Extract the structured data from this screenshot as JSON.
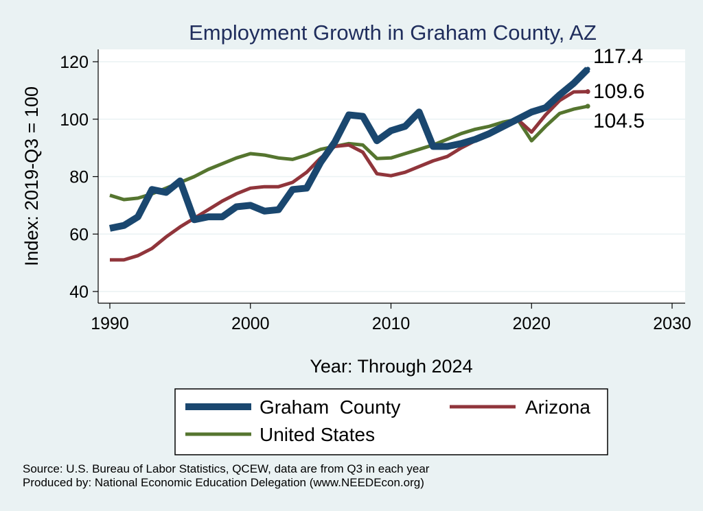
{
  "chart_data": {
    "type": "line",
    "title": "Employment Growth in Graham County, AZ",
    "xlabel": "Year: Through 2024",
    "ylabel": "Index: 2019-Q3 = 100",
    "xlim": [
      1990,
      2030
    ],
    "ylim": [
      40,
      120
    ],
    "x_ticks": [
      1990,
      2000,
      2010,
      2020,
      2030
    ],
    "y_ticks": [
      40,
      60,
      80,
      100,
      120
    ],
    "x_tick_labels": [
      "1990",
      "2000",
      "2010",
      "2020",
      "2030"
    ],
    "y_tick_labels": [
      "40",
      "60",
      "80",
      "100",
      "120"
    ],
    "grid": true,
    "legend_position": "bottom",
    "x": [
      1990,
      1991,
      1992,
      1993,
      1994,
      1995,
      1996,
      1997,
      1998,
      1999,
      2000,
      2001,
      2002,
      2003,
      2004,
      2005,
      2006,
      2007,
      2008,
      2009,
      2010,
      2011,
      2012,
      2013,
      2014,
      2015,
      2016,
      2017,
      2018,
      2019,
      2020,
      2021,
      2022,
      2023,
      2024
    ],
    "series": [
      {
        "name": "Graham  County",
        "color": "#1a476f",
        "values": [
          62,
          63,
          66,
          75.5,
          74.5,
          78.5,
          65,
          66,
          66,
          69.5,
          70,
          68,
          68.5,
          75.5,
          76,
          85,
          92,
          101.5,
          101,
          92.5,
          96,
          97.5,
          102.5,
          90.5,
          90.5,
          91.5,
          93,
          95,
          97.5,
          100,
          102.5,
          104,
          108.5,
          112.5,
          117.4
        ],
        "end_label": "117.4"
      },
      {
        "name": "Arizona",
        "color": "#90353b",
        "values": [
          51,
          51,
          52.5,
          55,
          59,
          62.5,
          65.5,
          68.5,
          71.5,
          74,
          76,
          76.5,
          76.5,
          78,
          81.5,
          86.5,
          90.5,
          91,
          88.5,
          81,
          80.3,
          81.5,
          83.5,
          85.5,
          87,
          90,
          92.5,
          94.5,
          97.5,
          100,
          95.5,
          101.5,
          106.5,
          109.5,
          109.6
        ],
        "end_label": "109.6"
      },
      {
        "name": "United States",
        "color": "#55752f",
        "values": [
          73.5,
          72,
          72.5,
          74,
          76,
          78,
          80,
          82.5,
          84.5,
          86.5,
          88,
          87.5,
          86.5,
          86,
          87.5,
          89.5,
          90.5,
          91.5,
          91,
          86.3,
          86.5,
          88,
          89.5,
          91,
          93,
          95,
          96.5,
          97.5,
          99,
          100,
          92.5,
          97.5,
          102,
          103.5,
          104.5
        ],
        "end_label": "104.5"
      }
    ]
  },
  "legend": {
    "items": [
      "Graham  County",
      "Arizona",
      "United States"
    ]
  },
  "footnotes": {
    "source": "Source: U.S. Bureau of Labor Statistics, QCEW, data are from Q3 in each year",
    "produced": "Produced by: National Economic Education Delegation (www.NEEDEcon.org)"
  }
}
